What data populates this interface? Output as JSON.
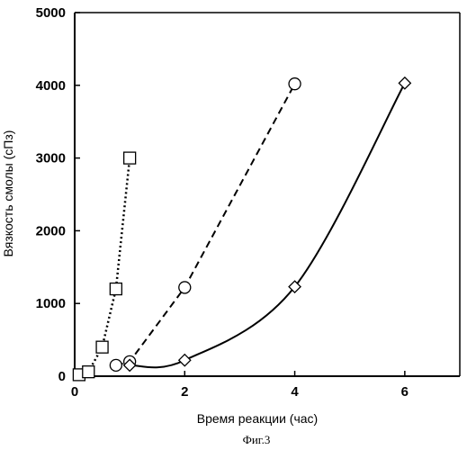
{
  "chart_data": {
    "type": "scatter",
    "title": "",
    "xlabel": "Время реакции (час)",
    "ylabel": "Вязкость смолы (сПз)",
    "caption": "Фиг.3",
    "xlim": [
      0,
      7
    ],
    "ylim": [
      0,
      5000
    ],
    "xticks": [
      0,
      2,
      4,
      6
    ],
    "yticks": [
      0,
      1000,
      2000,
      3000,
      4000,
      5000
    ],
    "grid": false,
    "legend": "none",
    "series": [
      {
        "marker": "square",
        "line": "dotted",
        "x": [
          0.08,
          0.25,
          0.5,
          0.75,
          1.0
        ],
        "y": [
          20,
          60,
          400,
          1200,
          3000
        ]
      },
      {
        "marker": "circle",
        "line": "dashed",
        "x": [
          0.75,
          1.0,
          2.0,
          4.0
        ],
        "y": [
          150,
          200,
          1220,
          4020
        ]
      },
      {
        "marker": "diamond",
        "line": "solid-smooth",
        "x": [
          1.0,
          2.0,
          4.0,
          6.0
        ],
        "y": [
          150,
          220,
          1230,
          4030
        ]
      }
    ]
  }
}
